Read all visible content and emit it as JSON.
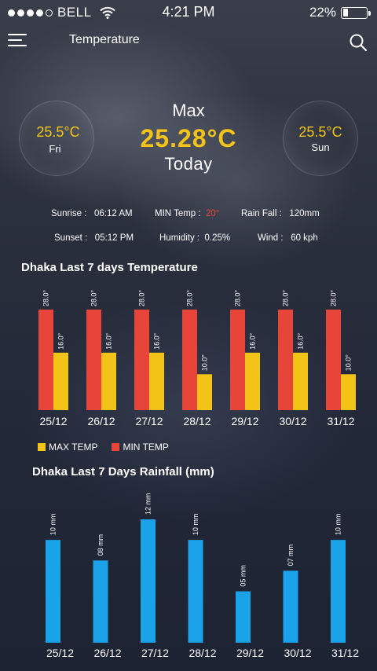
{
  "status": {
    "carrier": "BELL",
    "time": "4:21 PM",
    "battery": "22%",
    "battery_level": 0.22
  },
  "nav": {
    "title": "Temperature"
  },
  "forecast": {
    "left": {
      "temp": "25.5",
      "unit": "°C",
      "day": "Fri"
    },
    "right": {
      "temp": "25.5",
      "unit": "°C",
      "day": "Sun"
    },
    "center": {
      "label": "Max",
      "temp": "25.28",
      "unit": "°C",
      "day": "Today"
    }
  },
  "details": {
    "sunrise_label": "Sunrise :",
    "sunrise_value": "06:12 AM",
    "sunset_label": "Sunset :",
    "sunset_value": "05:12 PM",
    "min_temp_label": "MIN Temp :",
    "min_temp_value": "20°",
    "humidity_label": "Humidity :",
    "humidity_value": "0.25%",
    "rainfall_label": "Rain Fall :",
    "rainfall_value": "120mm",
    "wind_label": "Wind :",
    "wind_value": "60 kph"
  },
  "colors": {
    "max": "#e8453a",
    "min": "#f3c417",
    "rain": "#1aa3e8"
  },
  "chart_data": [
    {
      "type": "bar",
      "title": "Dhaka Last 7 days Temperature",
      "categories": [
        "25/12",
        "26/12",
        "27/12",
        "28/12",
        "29/12",
        "30/12",
        "31/12"
      ],
      "series": [
        {
          "name": "MIN TEMP",
          "values": [
            28.0,
            28.0,
            28.0,
            28.0,
            28.0,
            28.0,
            28.0
          ],
          "labels": [
            "28.0°",
            "28.0°",
            "28.0°",
            "28.0°",
            "28.0°",
            "28.0°",
            "28.0°"
          ],
          "color": "#e8453a"
        },
        {
          "name": "MAX TEMP",
          "values": [
            16.0,
            16.0,
            16.0,
            10.0,
            16.0,
            16.0,
            10.0
          ],
          "labels": [
            "16.0°",
            "16.0°",
            "16.0°",
            "10.0°",
            "16.0°",
            "16.0°",
            "10.0°"
          ],
          "color": "#f3c417"
        }
      ]
    },
    {
      "type": "bar",
      "title": "Dhaka Last 7 Days Rainfall (mm)",
      "categories": [
        "25/12",
        "26/12",
        "27/12",
        "28/12",
        "29/12",
        "30/12",
        "31/12"
      ],
      "series": [
        {
          "values": [
            10,
            8,
            12,
            10,
            5,
            7,
            10
          ],
          "labels": [
            "10 mm",
            "08 mm",
            "12 mm",
            "10 mm",
            "05 mm",
            "07 mm",
            "10 mm"
          ],
          "color": "#1aa3e8"
        }
      ]
    }
  ]
}
